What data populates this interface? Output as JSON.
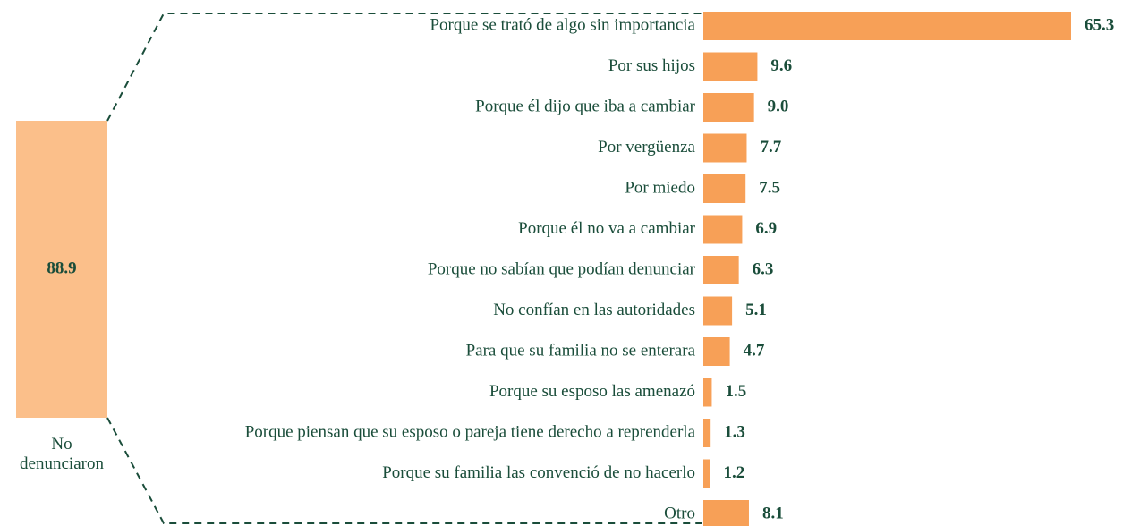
{
  "chart_data": {
    "type": "bar",
    "categories": [
      "Porque se trató de algo sin importancia",
      "Por sus hijos",
      "Porque él dijo que iba a cambiar",
      "Por vergüenza",
      "Por miedo",
      "Porque él no va a cambiar",
      "Porque no sabían que podían denunciar",
      "No confían en las autoridades",
      "Para que su familia no se enterara",
      "Porque su esposo las amenazó",
      "Porque piensan que su esposo o pareja tiene derecho a reprenderla",
      "Porque su familia las convenció de no hacerlo",
      "Otro"
    ],
    "values": [
      65.3,
      9.6,
      9.0,
      7.7,
      7.5,
      6.9,
      6.3,
      5.1,
      4.7,
      1.5,
      1.3,
      1.2,
      8.1
    ],
    "value_labels": [
      "65.3",
      "9.6",
      "9.0",
      "7.7",
      "7.5",
      "6.9",
      "6.3",
      "5.1",
      "4.7",
      "1.5",
      "1.3",
      "1.2",
      "8.1"
    ],
    "color": "#f7a057",
    "total": {
      "label": "No denunciaron",
      "value": 88.9,
      "color": "#fbbf8a"
    }
  }
}
